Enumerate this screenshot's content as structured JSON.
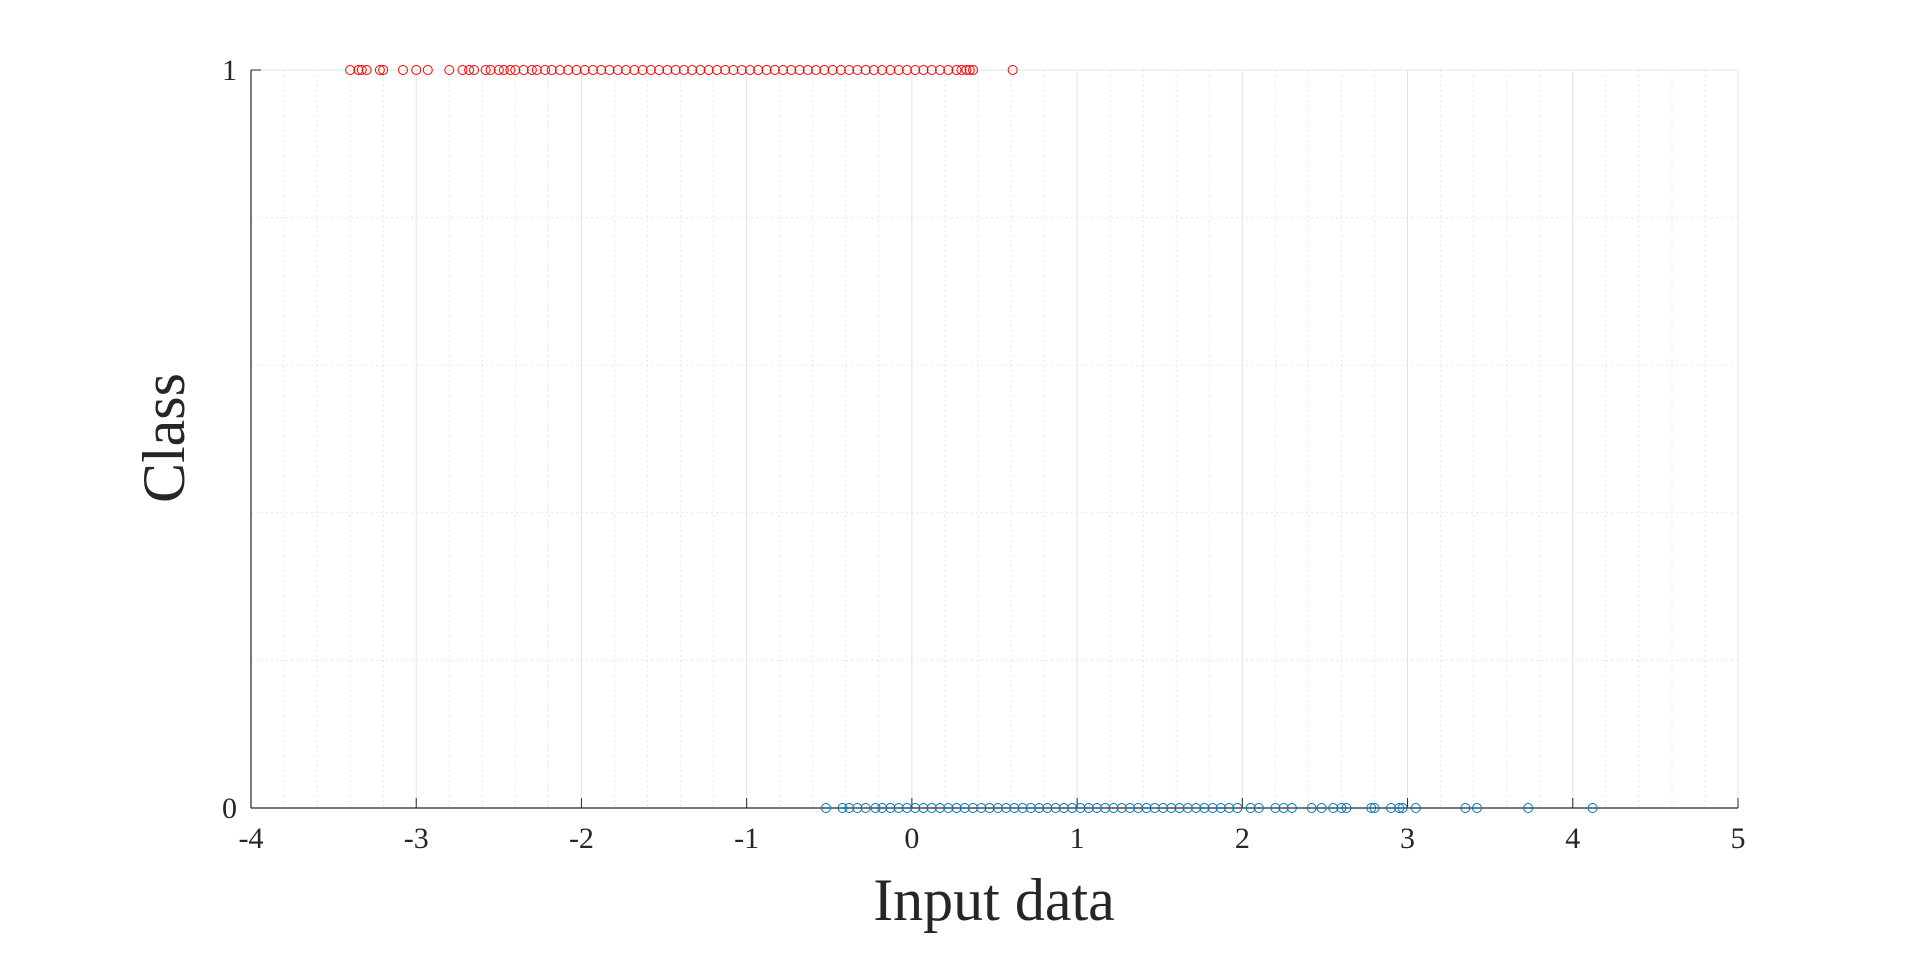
{
  "chart_data": {
    "type": "scatter",
    "xlabel": "Input data",
    "ylabel": "Class",
    "xlim": [
      -4,
      5
    ],
    "ylim": [
      0,
      1
    ],
    "xticks": [
      -4,
      -3,
      -2,
      -1,
      0,
      1,
      2,
      3,
      4,
      5
    ],
    "yticks": [
      0,
      1
    ],
    "grid": true,
    "minor_grid": true,
    "series": [
      {
        "color": "#ff0000",
        "x": [
          -3.4,
          -3.35,
          -3.33,
          -3.3,
          -3.22,
          -3.2,
          -3.08,
          -3.0,
          -2.93,
          -2.8,
          -2.72,
          -2.68,
          -2.65,
          -2.58,
          -2.55,
          -2.5,
          -2.47,
          -2.43,
          -2.4,
          -2.35,
          -2.3,
          -2.27,
          -2.22,
          -2.18,
          -2.13,
          -2.08,
          -2.03,
          -1.98,
          -1.93,
          -1.88,
          -1.83,
          -1.78,
          -1.73,
          -1.68,
          -1.63,
          -1.58,
          -1.53,
          -1.48,
          -1.43,
          -1.38,
          -1.33,
          -1.28,
          -1.23,
          -1.18,
          -1.13,
          -1.08,
          -1.03,
          -0.98,
          -0.93,
          -0.88,
          -0.83,
          -0.78,
          -0.73,
          -0.68,
          -0.63,
          -0.58,
          -0.53,
          -0.48,
          -0.43,
          -0.38,
          -0.33,
          -0.28,
          -0.23,
          -0.18,
          -0.13,
          -0.08,
          -0.03,
          0.02,
          0.07,
          0.12,
          0.17,
          0.22,
          0.27,
          0.3,
          0.33,
          0.35,
          0.37,
          0.61
        ],
        "y": [
          1,
          1,
          1,
          1,
          1,
          1,
          1,
          1,
          1,
          1,
          1,
          1,
          1,
          1,
          1,
          1,
          1,
          1,
          1,
          1,
          1,
          1,
          1,
          1,
          1,
          1,
          1,
          1,
          1,
          1,
          1,
          1,
          1,
          1,
          1,
          1,
          1,
          1,
          1,
          1,
          1,
          1,
          1,
          1,
          1,
          1,
          1,
          1,
          1,
          1,
          1,
          1,
          1,
          1,
          1,
          1,
          1,
          1,
          1,
          1,
          1,
          1,
          1,
          1,
          1,
          1,
          1,
          1,
          1,
          1,
          1,
          1,
          1,
          1,
          1,
          1,
          1,
          1
        ]
      },
      {
        "color": "#0072bd",
        "x": [
          -0.52,
          -0.42,
          -0.38,
          -0.33,
          -0.28,
          -0.22,
          -0.18,
          -0.13,
          -0.08,
          -0.03,
          0.02,
          0.07,
          0.12,
          0.17,
          0.22,
          0.27,
          0.32,
          0.37,
          0.42,
          0.47,
          0.52,
          0.57,
          0.62,
          0.67,
          0.72,
          0.77,
          0.82,
          0.87,
          0.92,
          0.97,
          1.02,
          1.07,
          1.12,
          1.17,
          1.22,
          1.27,
          1.32,
          1.37,
          1.42,
          1.47,
          1.52,
          1.57,
          1.62,
          1.67,
          1.72,
          1.77,
          1.82,
          1.87,
          1.92,
          1.97,
          2.05,
          2.1,
          2.2,
          2.25,
          2.3,
          2.42,
          2.48,
          2.55,
          2.6,
          2.63,
          2.78,
          2.8,
          2.9,
          2.95,
          2.97,
          3.05,
          3.35,
          3.42,
          3.73,
          4.12
        ],
        "y": [
          0,
          0,
          0,
          0,
          0,
          0,
          0,
          0,
          0,
          0,
          0,
          0,
          0,
          0,
          0,
          0,
          0,
          0,
          0,
          0,
          0,
          0,
          0,
          0,
          0,
          0,
          0,
          0,
          0,
          0,
          0,
          0,
          0,
          0,
          0,
          0,
          0,
          0,
          0,
          0,
          0,
          0,
          0,
          0,
          0,
          0,
          0,
          0,
          0,
          0,
          0,
          0,
          0,
          0,
          0,
          0,
          0,
          0,
          0,
          0,
          0,
          0,
          0,
          0,
          0,
          0,
          0,
          0,
          0,
          0
        ]
      }
    ]
  }
}
